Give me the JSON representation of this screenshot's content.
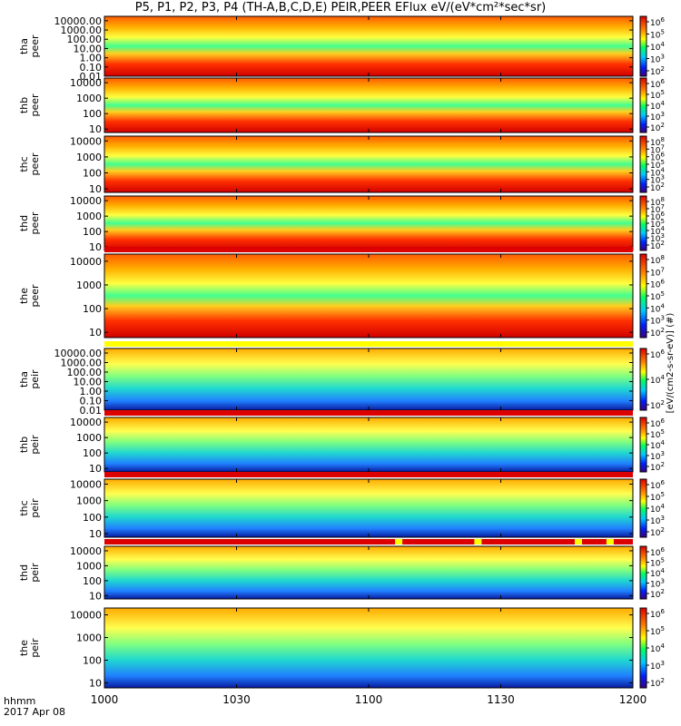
{
  "title": "P5, P1, P2, P3, P4 (TH-A,B,C,D,E) PEIR,PEER EFlux eV/(eV*cm²*sec*sr)",
  "footer": {
    "time_label": "hhmm",
    "date_label": "2017 Apr 08"
  },
  "colorbar_label": "[eV/(cm2-s-sr-eV)] (#)",
  "colors": {
    "frame": "#000000",
    "bar_red": "#dd0000",
    "bar_yellow": "#ffff00"
  },
  "chart_data": {
    "type": "heatmap",
    "title": "P5, P1, P2, P3, P4 (TH-A,B,C,D,E) PEIR,PEER EFlux eV/(eV*cm²*sec*sr)",
    "x": {
      "label": "hhmm",
      "start": "1000",
      "end": "1200",
      "ticks": [
        "1000",
        "1030",
        "1100",
        "1130",
        "1200"
      ]
    },
    "scale": "log",
    "colormap": "rainbow",
    "panels": [
      {
        "probe": "tha",
        "species": "peer",
        "ylabel": [
          "tha",
          "peer"
        ],
        "yticks": [
          "0.01",
          "0.10",
          "1.00",
          "10.00",
          "100.00",
          "1000.00",
          "10000.00"
        ],
        "ylim": [
          0.01,
          30000
        ],
        "cbar_ticks": [
          "6",
          "5",
          "4",
          "3",
          "2"
        ],
        "status_bar": "none"
      },
      {
        "probe": "thb",
        "species": "peer",
        "ylabel": [
          "thb",
          "peer"
        ],
        "yticks": [
          "10",
          "100",
          "1000",
          "10000"
        ],
        "ylim": [
          6,
          20000
        ],
        "cbar_ticks": [
          "6",
          "5",
          "4",
          "3",
          "2"
        ],
        "status_bar": "none"
      },
      {
        "probe": "thc",
        "species": "peer",
        "ylabel": [
          "thc",
          "peer"
        ],
        "yticks": [
          "10",
          "100",
          "1000",
          "10000"
        ],
        "ylim": [
          6,
          20000
        ],
        "cbar_ticks": [
          "8",
          "7",
          "6",
          "5",
          "4",
          "3",
          "2"
        ],
        "status_bar": "none"
      },
      {
        "probe": "thd",
        "species": "peer",
        "ylabel": [
          "thd",
          "peer"
        ],
        "yticks": [
          "10",
          "100",
          "1000",
          "10000"
        ],
        "ylim": [
          6,
          20000
        ],
        "cbar_ticks": [
          "8",
          "7",
          "6",
          "5",
          "4",
          "3",
          "2"
        ],
        "status_bar": "none"
      },
      {
        "probe": "the",
        "species": "peer",
        "ylabel": [
          "the",
          "peer"
        ],
        "yticks": [
          "10",
          "100",
          "1000",
          "10000"
        ],
        "ylim": [
          6,
          20000
        ],
        "cbar_ticks": [
          "8",
          "7",
          "6",
          "5",
          "4",
          "3",
          "2"
        ],
        "status_bar": "red"
      },
      {
        "probe": "tha",
        "species": "peir",
        "ylabel": [
          "tha",
          "peir"
        ],
        "yticks": [
          "0.01",
          "0.10",
          "1.00",
          "10.00",
          "100.00",
          "1000.00",
          "10000.00"
        ],
        "ylim": [
          0.01,
          30000
        ],
        "cbar_ticks": [
          "6",
          "4",
          "2"
        ],
        "status_bar": "yellow"
      },
      {
        "probe": "thb",
        "species": "peir",
        "ylabel": [
          "thb",
          "peir"
        ],
        "yticks": [
          "10",
          "100",
          "1000",
          "10000"
        ],
        "ylim": [
          6,
          20000
        ],
        "cbar_ticks": [
          "6",
          "5",
          "4",
          "3",
          "2"
        ],
        "status_bar": "red"
      },
      {
        "probe": "thc",
        "species": "peir",
        "ylabel": [
          "thc",
          "peir"
        ],
        "yticks": [
          "10",
          "100",
          "1000",
          "10000"
        ],
        "ylim": [
          6,
          20000
        ],
        "cbar_ticks": [
          "6",
          "5",
          "4",
          "3",
          "2"
        ],
        "status_bar": "red"
      },
      {
        "probe": "thd",
        "species": "peir",
        "ylabel": [
          "thd",
          "peir"
        ],
        "yticks": [
          "10",
          "100",
          "1000",
          "10000"
        ],
        "ylim": [
          6,
          20000
        ],
        "cbar_ticks": [
          "6",
          "5",
          "4",
          "3",
          "2"
        ],
        "status_bar": "red_yellow_gaps"
      },
      {
        "probe": "the",
        "species": "peir",
        "ylabel": [
          "the",
          "peir"
        ],
        "yticks": [
          "10",
          "100",
          "1000",
          "10000"
        ],
        "ylim": [
          6,
          20000
        ],
        "cbar_ticks": [
          "6",
          "5",
          "4",
          "3",
          "2"
        ],
        "status_bar": "none"
      }
    ]
  }
}
